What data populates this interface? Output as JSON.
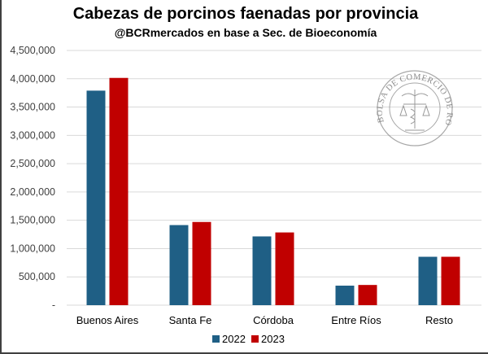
{
  "chart_data": {
    "type": "bar",
    "title": "Cabezas de porcinos faenadas por provincia",
    "subtitle": "@BCRmercados en base a Sec. de Bioeconomía",
    "xlabel": "",
    "ylabel": "",
    "ylim": [
      0,
      4500000
    ],
    "yticks": [
      0,
      500000,
      1000000,
      1500000,
      2000000,
      2500000,
      3000000,
      3500000,
      4000000,
      4500000
    ],
    "ytick_labels": [
      "-",
      "500,000",
      "1,000,000",
      "1,500,000",
      "2,000,000",
      "2,500,000",
      "3,000,000",
      "3,500,000",
      "4,000,000",
      "4,500,000"
    ],
    "grid": true,
    "legend_position": "bottom-center",
    "categories": [
      "Buenos Aires",
      "Santa Fe",
      "Córdoba",
      "Entre Ríos",
      "Resto"
    ],
    "series": [
      {
        "name": "2022",
        "color": "#1F5F85",
        "values": [
          3790000,
          1415000,
          1215000,
          345000,
          855000
        ]
      },
      {
        "name": "2023",
        "color": "#C00000",
        "values": [
          4015000,
          1470000,
          1285000,
          357000,
          855000
        ]
      }
    ]
  },
  "watermark": {
    "text": "BOLSA DE COMERCIO DE ROSARIO"
  }
}
